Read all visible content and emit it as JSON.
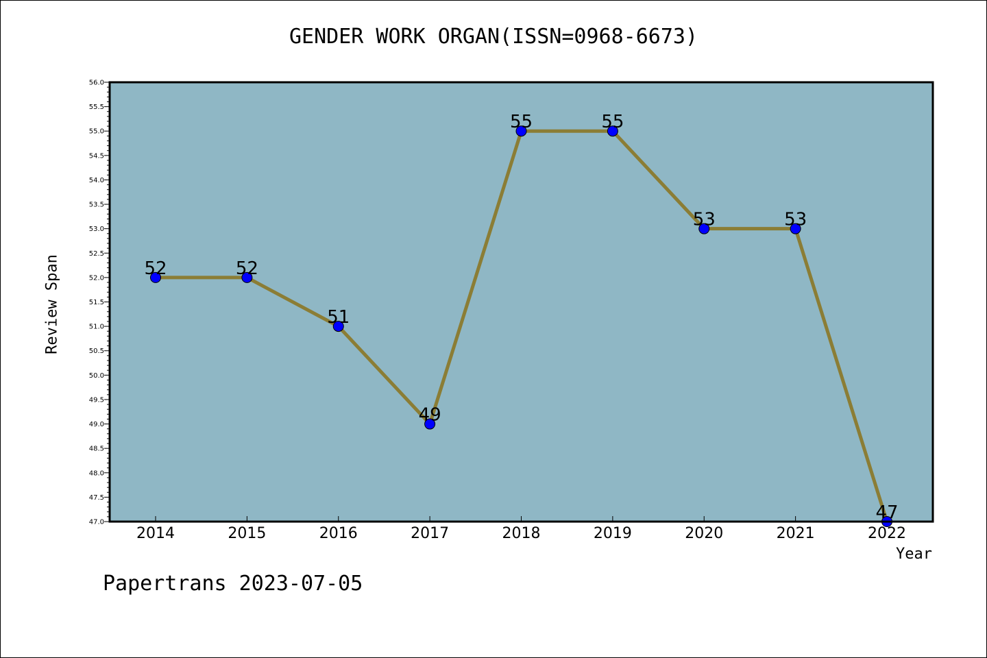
{
  "chart_data": {
    "type": "line",
    "title": "GENDER WORK ORGAN(ISSN=0968-6673)",
    "xlabel": "Year",
    "ylabel": "Review Span",
    "categories": [
      "2014",
      "2015",
      "2016",
      "2017",
      "2018",
      "2019",
      "2020",
      "2021",
      "2022"
    ],
    "series": [
      {
        "values": [
          52,
          52,
          51,
          49,
          55,
          55,
          53,
          53,
          47
        ]
      }
    ],
    "data_labels": [
      "52",
      "52",
      "51",
      "49",
      "55",
      "55",
      "53",
      "53",
      "47"
    ],
    "ylim": [
      47.0,
      56.0
    ],
    "yticks": [
      "47.0",
      "47.5",
      "48.0",
      "48.5",
      "49.0",
      "49.5",
      "50.0",
      "50.5",
      "51.0",
      "51.5",
      "52.0",
      "52.5",
      "53.0",
      "53.5",
      "54.0",
      "54.5",
      "55.0",
      "55.5",
      "56.0"
    ],
    "grid": false,
    "colors": {
      "plot_background": "#8fb7c5",
      "line": "#8b7d35",
      "marker": "#0000ff"
    }
  },
  "footer": {
    "watermark": "Papertrans 2023-07-05"
  }
}
